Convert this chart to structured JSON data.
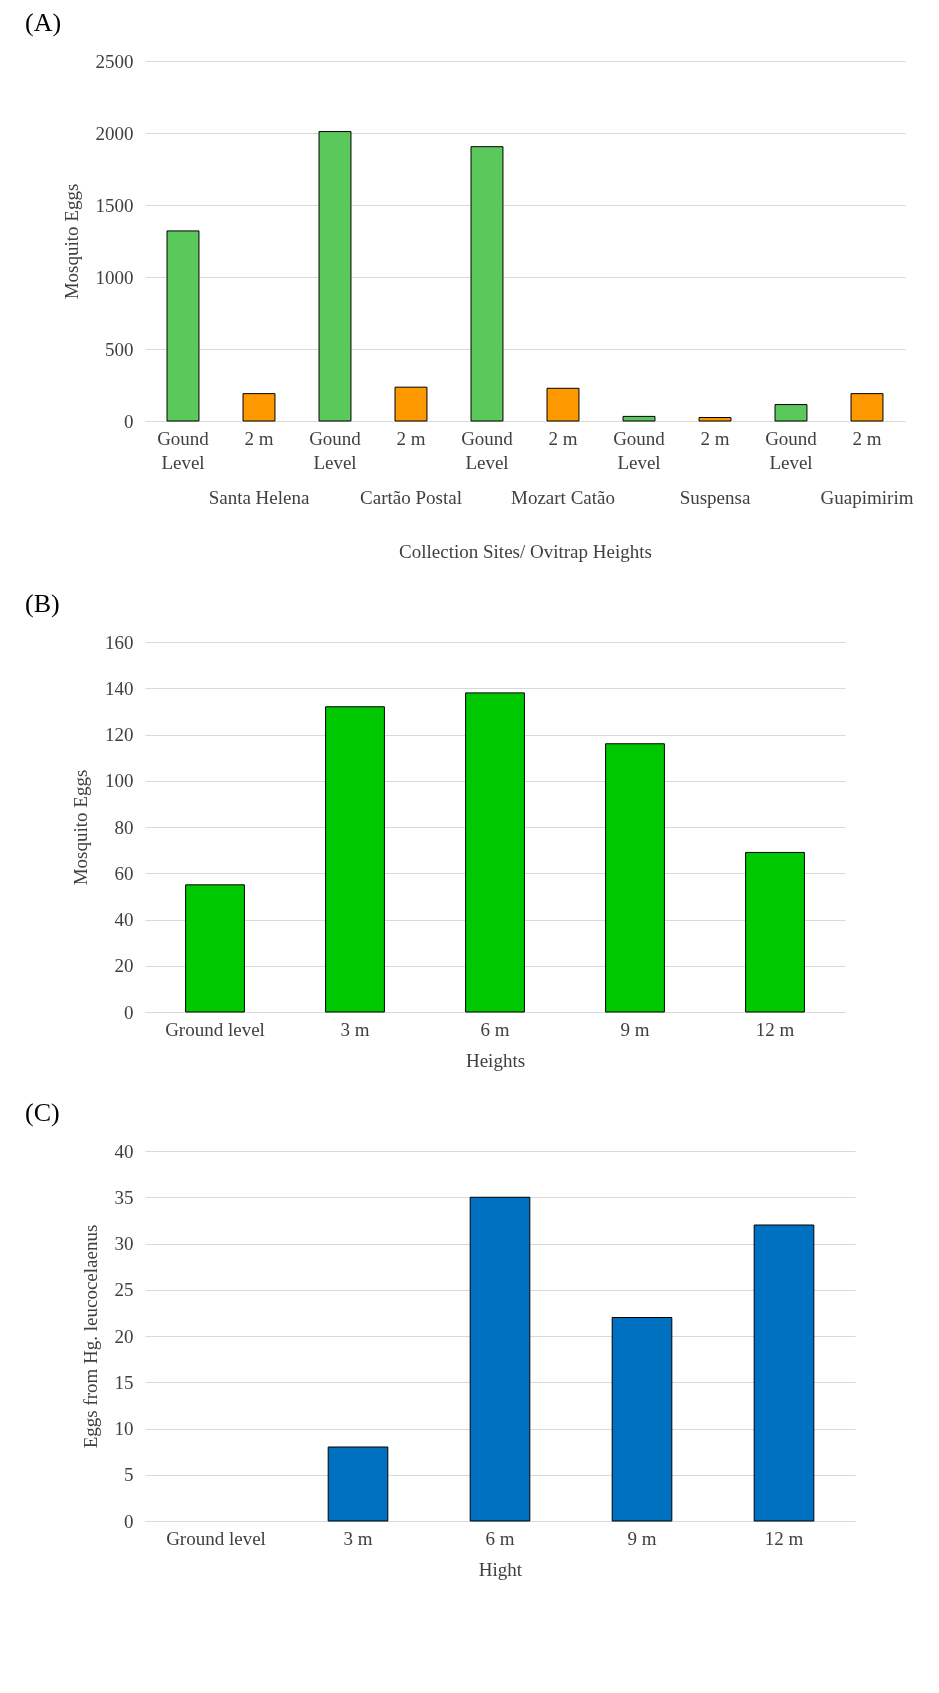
{
  "chart_data": [
    {
      "type": "bar",
      "title": "(A)",
      "xlabel": "Collection Sites/ Ovitrap Heights",
      "ylabel": "Mosquito Eggs",
      "categories": [
        "Gound Level",
        "2 m",
        "Gound Level",
        "2 m",
        "Gound Level",
        "2 m",
        "Gound Level",
        "2 m",
        "Gound Level",
        "2 m"
      ],
      "values": [
        1320,
        190,
        2010,
        235,
        1905,
        227,
        32,
        24,
        114,
        190
      ],
      "colors": [
        "#5ac85a",
        "#ff9900",
        "#5ac85a",
        "#ff9900",
        "#5ac85a",
        "#ff9900",
        "#5ac85a",
        "#ff9900",
        "#5ac85a",
        "#ff9900"
      ],
      "annotations": [
        "Santa Helena",
        "Cartão Postal",
        "Mozart Catão",
        "Suspensa",
        "Guapimirim"
      ],
      "ylim": [
        0,
        2500
      ],
      "yticks": [
        0,
        500,
        1000,
        1500,
        2000,
        2500
      ],
      "grid": "y"
    },
    {
      "type": "bar",
      "title": "(B)",
      "xlabel": "Heights",
      "ylabel": "Mosquito Eggs",
      "categories": [
        "Ground level",
        "3 m",
        "6 m",
        "9 m",
        "12 m"
      ],
      "values": [
        55,
        132,
        138,
        116,
        69
      ],
      "colors": [
        "#00c800",
        "#00c800",
        "#00c800",
        "#00c800",
        "#00c800"
      ],
      "ylim": [
        0,
        160
      ],
      "yticks": [
        0,
        20,
        40,
        60,
        80,
        100,
        120,
        140,
        160
      ],
      "grid": "y"
    },
    {
      "type": "bar",
      "title": "(C)",
      "xlabel": "Hight",
      "ylabel": "Eggs from Hg. leucocelaenus",
      "categories": [
        "Ground level",
        "3 m",
        "6 m",
        "9 m",
        "12 m"
      ],
      "values": [
        0,
        8,
        35,
        22,
        32
      ],
      "colors": [
        "#0070c0",
        "#0070c0",
        "#0070c0",
        "#0070c0",
        "#0070c0"
      ],
      "ylim": [
        0,
        40
      ],
      "yticks": [
        0,
        5,
        10,
        15,
        20,
        25,
        30,
        35,
        40
      ],
      "grid": "y"
    }
  ]
}
